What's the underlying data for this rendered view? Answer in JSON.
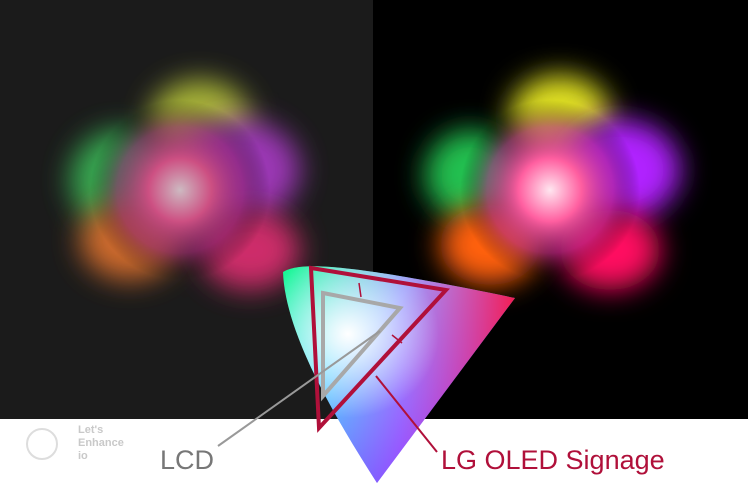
{
  "labels": {
    "lcd": "LCD",
    "oled": "LG OLED Signage"
  },
  "watermark": [
    "Let's",
    "Enhance",
    "io"
  ]
}
